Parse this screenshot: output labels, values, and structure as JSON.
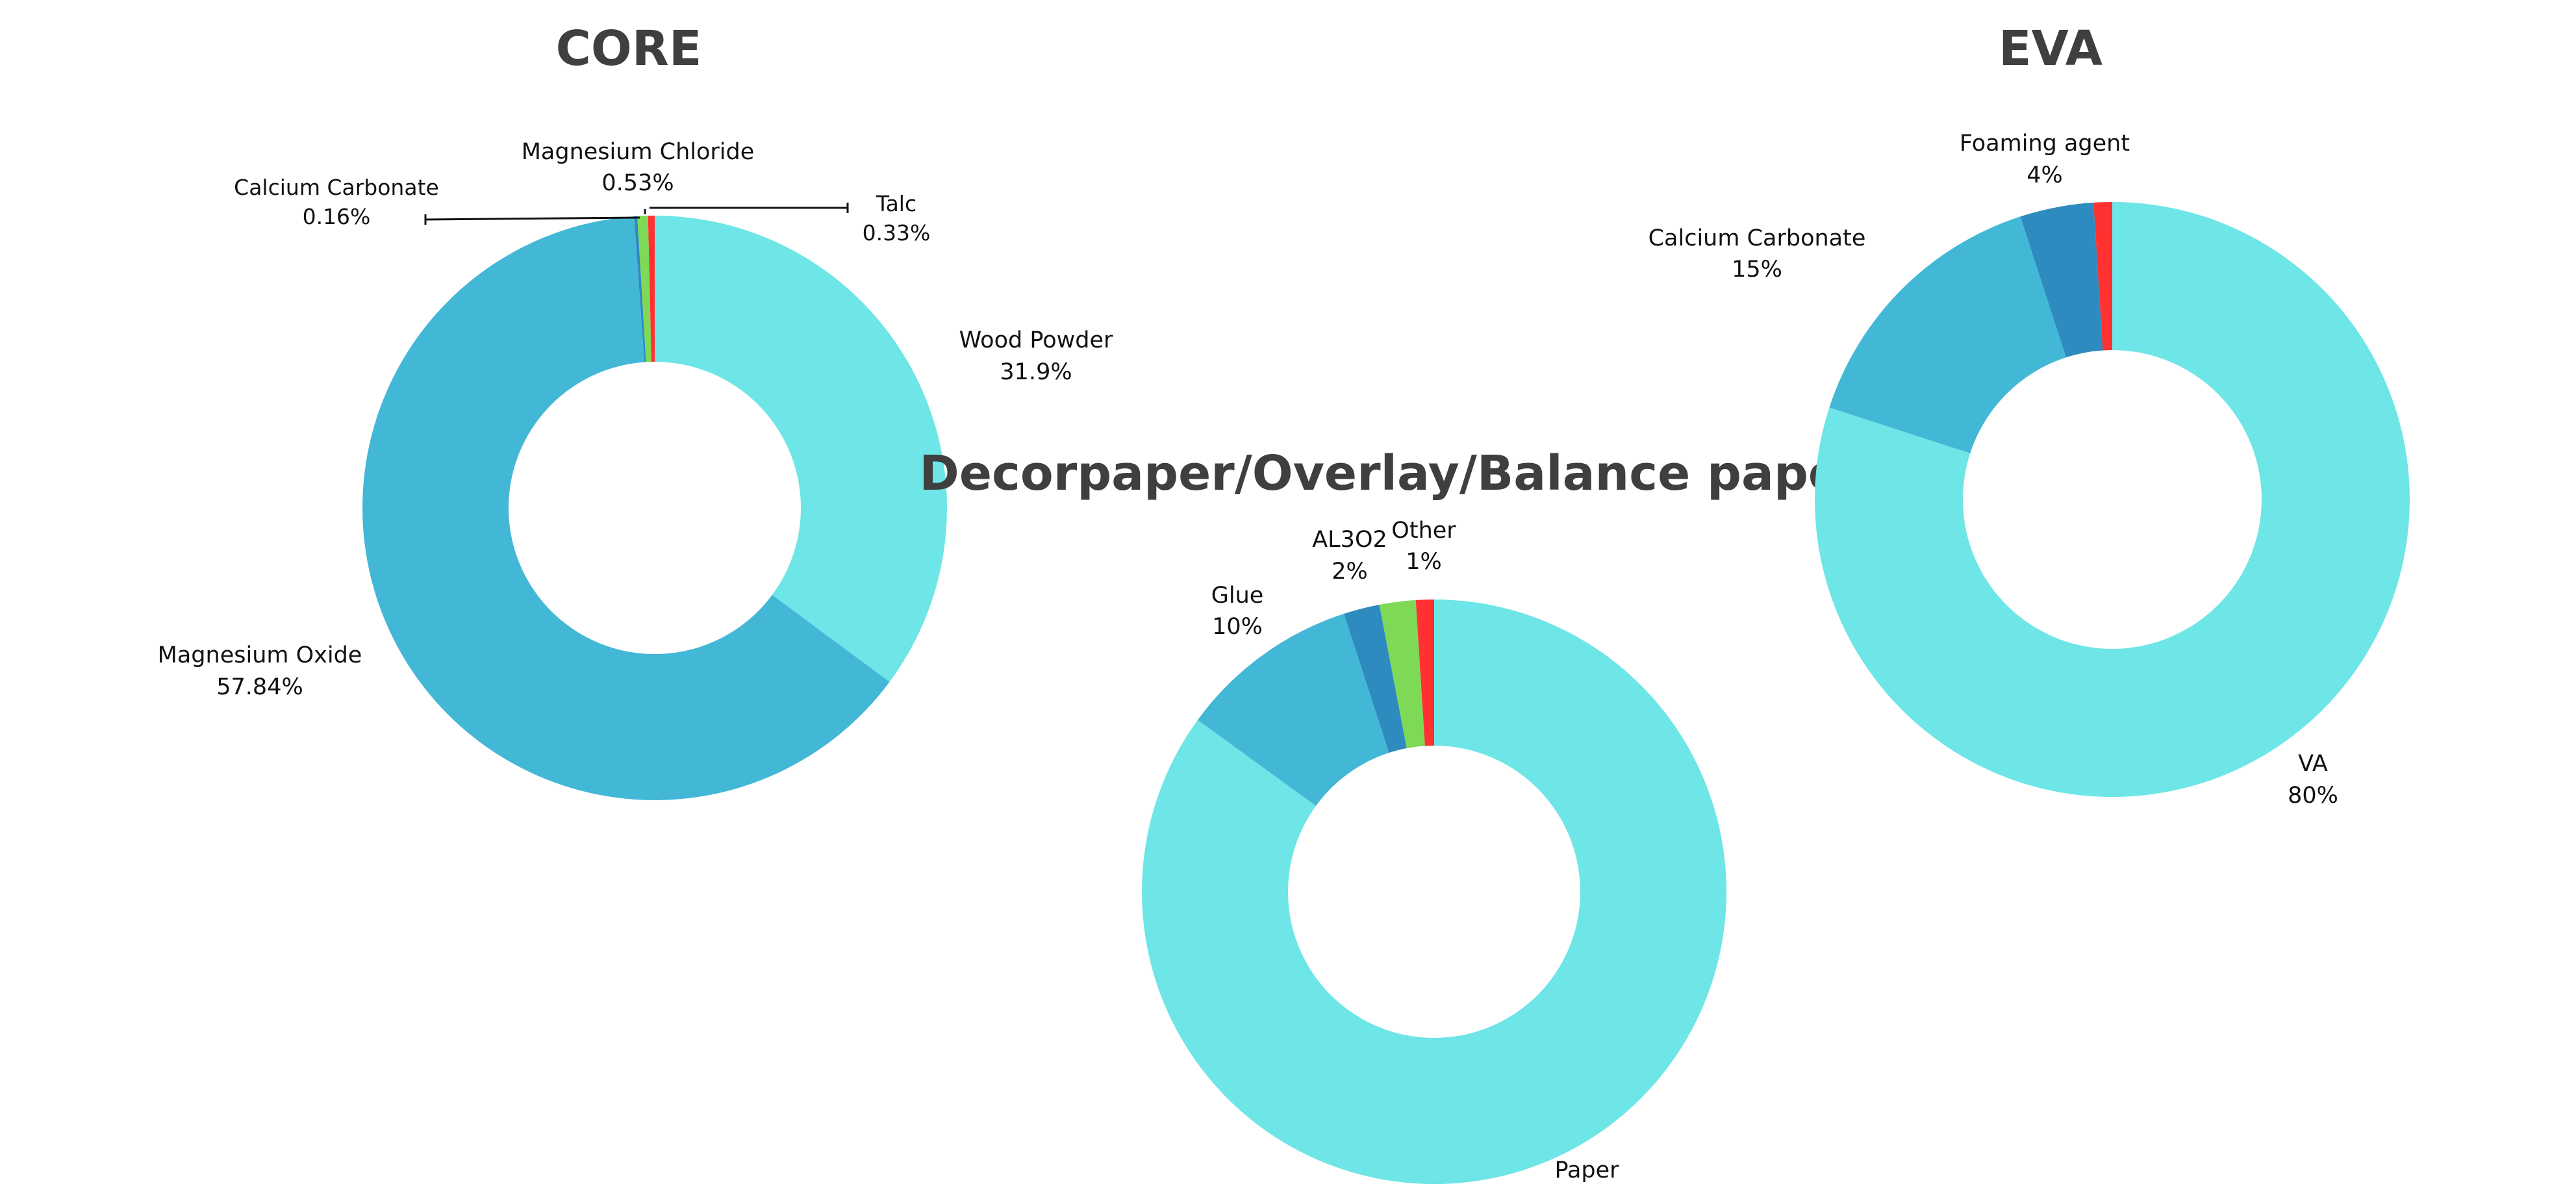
{
  "chart_data": [
    {
      "type": "pie",
      "title": "CORE",
      "slices": [
        {
          "label": "Wood Powder",
          "value_label": "31.9%",
          "value": 31.9,
          "color": "#6ee5e7"
        },
        {
          "label": "Magnesium Oxide",
          "value_label": "57.84%",
          "value": 57.84,
          "color": "#43b8d6"
        },
        {
          "label": "Calcium Carbonate",
          "value_label": "0.16%",
          "value": 0.16,
          "color": "#2e8bc0"
        },
        {
          "label": "Magnesium Chloride",
          "value_label": "0.53%",
          "value": 0.53,
          "color": "#7ed957"
        },
        {
          "label": "Talc",
          "value_label": "0.33%",
          "value": 0.33,
          "color": "#ff3131"
        }
      ]
    },
    {
      "type": "pie",
      "title": "Decorpaper/Overlay/Balance paper",
      "slices": [
        {
          "label": "Paper",
          "value_label": "",
          "value": 85,
          "color": "#6ee5e7"
        },
        {
          "label": "Glue",
          "value_label": "10%",
          "value": 10,
          "color": "#43b8d6"
        },
        {
          "label": "AL3O2",
          "value_label": "2%",
          "value": 2,
          "color": "#2e8bc0"
        },
        {
          "label": "",
          "value_label": "",
          "value": 2,
          "color": "#7ed957"
        },
        {
          "label": "Other",
          "value_label": "1%",
          "value": 1,
          "color": "#ff3131"
        }
      ]
    },
    {
      "type": "pie",
      "title": "EVA",
      "slices": [
        {
          "label": "VA",
          "value_label": "80%",
          "value": 80,
          "color": "#6ee5e7"
        },
        {
          "label": "Calcium Carbonate",
          "value_label": "15%",
          "value": 15,
          "color": "#43b8d6"
        },
        {
          "label": "Foaming agent",
          "value_label": "4%",
          "value": 4,
          "color": "#2e8bc0"
        },
        {
          "label": "",
          "value_label": "",
          "value": 1,
          "color": "#ff3131"
        }
      ]
    }
  ]
}
